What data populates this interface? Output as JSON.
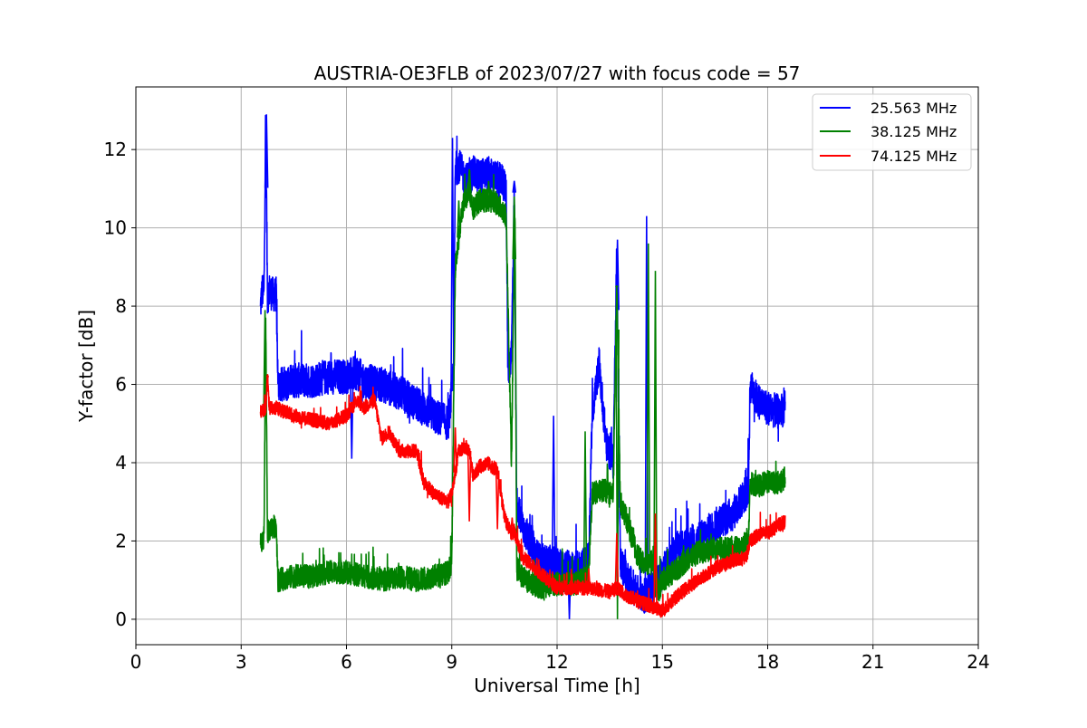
{
  "chart_data": {
    "type": "line",
    "title": "AUSTRIA-OE3FLB of 2023/07/27 with focus code = 57",
    "xlabel": "Universal Time [h]",
    "ylabel": "Y-factor [dB]",
    "xlim": [
      0,
      24
    ],
    "ylim": [
      -0.65,
      13.6
    ],
    "xticks": [
      0,
      3,
      6,
      9,
      12,
      15,
      18,
      21,
      24
    ],
    "yticks": [
      0,
      2,
      4,
      6,
      8,
      10,
      12
    ],
    "grid": true,
    "legend_position": "top-right",
    "series": [
      {
        "name": "25.563 MHz",
        "color": "#0000ff",
        "amplitude": 0.45,
        "x": [
          3.55,
          3.6,
          3.65,
          3.7,
          3.75,
          3.8,
          3.9,
          4.0,
          4.05,
          4.2,
          4.5,
          5.0,
          5.5,
          6.0,
          6.3,
          6.5,
          7.0,
          7.5,
          8.0,
          8.5,
          8.9,
          9.0,
          9.05,
          9.1,
          9.2,
          9.4,
          9.6,
          9.8,
          10.0,
          10.2,
          10.4,
          10.55,
          10.6,
          10.7,
          10.78,
          10.85,
          11.0,
          11.5,
          12.0,
          12.4,
          12.6,
          12.9,
          13.0,
          13.2,
          13.4,
          13.6,
          13.7,
          13.8,
          14.0,
          14.3,
          14.5,
          14.7,
          14.9,
          15.0,
          15.2,
          15.5,
          16.0,
          16.5,
          17.0,
          17.3,
          17.45,
          17.5,
          17.7,
          18.0,
          18.3,
          18.5
        ],
        "y": [
          8.0,
          8.4,
          8.3,
          12.9,
          8.2,
          8.4,
          8.3,
          8.3,
          6.0,
          6.0,
          6.1,
          6.1,
          6.2,
          6.2,
          6.3,
          6.1,
          6.0,
          5.8,
          5.5,
          5.2,
          5.0,
          5.8,
          6.5,
          11.5,
          11.6,
          11.2,
          11.4,
          11.3,
          11.4,
          11.3,
          11.2,
          11.0,
          6.3,
          6.8,
          10.9,
          3.0,
          2.4,
          1.5,
          1.4,
          1.3,
          1.3,
          1.5,
          5.3,
          6.5,
          4.5,
          4.0,
          9.5,
          1.5,
          1.0,
          0.7,
          0.6,
          0.8,
          1.0,
          1.2,
          1.5,
          1.9,
          2.0,
          2.4,
          2.7,
          3.1,
          3.3,
          6.0,
          5.6,
          5.4,
          5.3,
          5.4
        ],
        "spikes": [
          {
            "x": 3.72,
            "y": 12.9
          },
          {
            "x": 9.02,
            "y": 12.3
          },
          {
            "x": 10.78,
            "y": 11.2
          },
          {
            "x": 13.72,
            "y": 9.7
          },
          {
            "x": 14.55,
            "y": 10.3
          },
          {
            "x": 12.35,
            "y": 0.0
          },
          {
            "x": 6.15,
            "y": 4.1
          },
          {
            "x": 11.9,
            "y": 5.2
          }
        ]
      },
      {
        "name": "38.125 MHz",
        "color": "#008000",
        "amplitude": 0.3,
        "x": [
          3.55,
          3.65,
          3.7,
          3.75,
          3.8,
          4.0,
          4.05,
          4.5,
          5.0,
          5.5,
          6.0,
          6.5,
          7.0,
          7.5,
          8.0,
          8.5,
          8.9,
          9.0,
          9.1,
          9.3,
          9.5,
          9.6,
          9.8,
          10.0,
          10.2,
          10.4,
          10.55,
          10.7,
          10.8,
          10.85,
          11.0,
          11.5,
          12.0,
          12.5,
          12.9,
          13.0,
          13.3,
          13.6,
          13.7,
          13.8,
          14.0,
          14.3,
          14.5,
          14.7,
          14.9,
          15.0,
          15.3,
          15.7,
          16.0,
          16.5,
          17.0,
          17.3,
          17.45,
          17.5,
          17.7,
          18.0,
          18.3,
          18.5
        ],
        "y": [
          1.9,
          2.1,
          7.5,
          2.2,
          2.3,
          2.4,
          1.0,
          1.1,
          1.1,
          1.2,
          1.2,
          1.1,
          1.0,
          1.1,
          1.0,
          1.1,
          1.2,
          1.5,
          9.0,
          10.5,
          11.0,
          10.5,
          10.7,
          10.7,
          10.7,
          10.5,
          10.3,
          4.0,
          10.5,
          1.3,
          1.1,
          0.8,
          0.9,
          0.9,
          1.1,
          3.2,
          3.3,
          3.2,
          8.5,
          3.0,
          2.5,
          1.6,
          1.4,
          1.5,
          0.7,
          1.0,
          1.2,
          1.5,
          1.7,
          1.8,
          1.8,
          1.9,
          2.1,
          3.5,
          3.4,
          3.5,
          3.5,
          3.6
        ],
        "spikes": [
          {
            "x": 3.68,
            "y": 7.9
          },
          {
            "x": 9.2,
            "y": 10.7
          },
          {
            "x": 9.5,
            "y": 11.5
          },
          {
            "x": 10.05,
            "y": 11.2
          },
          {
            "x": 10.78,
            "y": 10.8
          },
          {
            "x": 13.7,
            "y": 8.5
          },
          {
            "x": 14.6,
            "y": 9.6
          },
          {
            "x": 14.8,
            "y": 8.9
          },
          {
            "x": 13.72,
            "y": 0.0
          },
          {
            "x": 12.8,
            "y": 4.8
          }
        ]
      },
      {
        "name": "74.125 MHz",
        "color": "#ff0000",
        "amplitude": 0.18,
        "x": [
          3.55,
          3.7,
          3.75,
          3.8,
          4.0,
          4.5,
          5.0,
          5.5,
          6.0,
          6.3,
          6.5,
          6.8,
          7.0,
          7.2,
          7.5,
          8.0,
          8.2,
          8.5,
          8.9,
          9.0,
          9.2,
          9.4,
          9.5,
          9.6,
          9.8,
          10.0,
          10.3,
          10.5,
          10.6,
          10.7,
          10.8,
          11.0,
          11.5,
          12.0,
          12.5,
          13.0,
          13.5,
          13.7,
          14.0,
          14.5,
          14.8,
          15.0,
          15.3,
          15.7,
          16.0,
          16.5,
          17.0,
          17.4,
          17.5,
          17.8,
          18.0,
          18.3,
          18.5
        ],
        "y": [
          5.3,
          5.4,
          6.2,
          5.4,
          5.4,
          5.2,
          5.1,
          5.0,
          5.2,
          5.6,
          5.4,
          5.6,
          4.6,
          4.8,
          4.3,
          4.3,
          3.5,
          3.2,
          3.0,
          3.2,
          4.3,
          4.4,
          4.3,
          3.7,
          3.9,
          4.0,
          3.8,
          2.6,
          2.4,
          2.2,
          2.2,
          1.6,
          1.2,
          0.8,
          0.8,
          0.8,
          0.7,
          0.8,
          0.6,
          0.4,
          0.3,
          0.2,
          0.5,
          0.8,
          1.0,
          1.3,
          1.5,
          1.6,
          2.0,
          2.2,
          2.2,
          2.4,
          2.5
        ],
        "spikes": [
          {
            "x": 3.75,
            "y": 6.2
          },
          {
            "x": 9.1,
            "y": 4.9
          },
          {
            "x": 9.5,
            "y": 2.5
          },
          {
            "x": 10.3,
            "y": 2.3
          },
          {
            "x": 10.72,
            "y": 2.6
          },
          {
            "x": 13.7,
            "y": 2.2
          },
          {
            "x": 14.8,
            "y": 2.7
          },
          {
            "x": 12.9,
            "y": 1.3
          }
        ]
      }
    ]
  }
}
